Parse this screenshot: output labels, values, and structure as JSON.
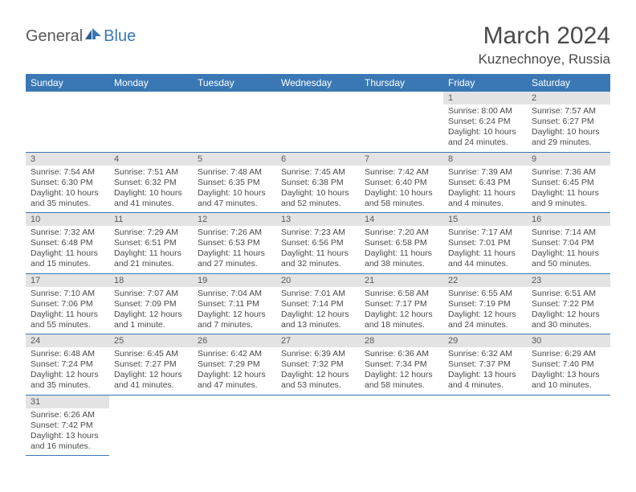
{
  "brand": {
    "part1": "General",
    "part2": "Blue"
  },
  "title": "March 2024",
  "location": "Kuznechnoye, Russia",
  "colors": {
    "header_bg": "#3a78b5",
    "header_text": "#ffffff",
    "daynum_bg": "#e3e3e3",
    "text": "#4a4a4a",
    "divider": "#3a78b5",
    "page_bg": "#ffffff"
  },
  "weekdays": [
    "Sunday",
    "Monday",
    "Tuesday",
    "Wednesday",
    "Thursday",
    "Friday",
    "Saturday"
  ],
  "weeks": [
    [
      null,
      null,
      null,
      null,
      null,
      {
        "day": "1",
        "sunrise": "Sunrise: 8:00 AM",
        "sunset": "Sunset: 6:24 PM",
        "daylight": "Daylight: 10 hours and 24 minutes."
      },
      {
        "day": "2",
        "sunrise": "Sunrise: 7:57 AM",
        "sunset": "Sunset: 6:27 PM",
        "daylight": "Daylight: 10 hours and 29 minutes."
      }
    ],
    [
      {
        "day": "3",
        "sunrise": "Sunrise: 7:54 AM",
        "sunset": "Sunset: 6:30 PM",
        "daylight": "Daylight: 10 hours and 35 minutes."
      },
      {
        "day": "4",
        "sunrise": "Sunrise: 7:51 AM",
        "sunset": "Sunset: 6:32 PM",
        "daylight": "Daylight: 10 hours and 41 minutes."
      },
      {
        "day": "5",
        "sunrise": "Sunrise: 7:48 AM",
        "sunset": "Sunset: 6:35 PM",
        "daylight": "Daylight: 10 hours and 47 minutes."
      },
      {
        "day": "6",
        "sunrise": "Sunrise: 7:45 AM",
        "sunset": "Sunset: 6:38 PM",
        "daylight": "Daylight: 10 hours and 52 minutes."
      },
      {
        "day": "7",
        "sunrise": "Sunrise: 7:42 AM",
        "sunset": "Sunset: 6:40 PM",
        "daylight": "Daylight: 10 hours and 58 minutes."
      },
      {
        "day": "8",
        "sunrise": "Sunrise: 7:39 AM",
        "sunset": "Sunset: 6:43 PM",
        "daylight": "Daylight: 11 hours and 4 minutes."
      },
      {
        "day": "9",
        "sunrise": "Sunrise: 7:36 AM",
        "sunset": "Sunset: 6:45 PM",
        "daylight": "Daylight: 11 hours and 9 minutes."
      }
    ],
    [
      {
        "day": "10",
        "sunrise": "Sunrise: 7:32 AM",
        "sunset": "Sunset: 6:48 PM",
        "daylight": "Daylight: 11 hours and 15 minutes."
      },
      {
        "day": "11",
        "sunrise": "Sunrise: 7:29 AM",
        "sunset": "Sunset: 6:51 PM",
        "daylight": "Daylight: 11 hours and 21 minutes."
      },
      {
        "day": "12",
        "sunrise": "Sunrise: 7:26 AM",
        "sunset": "Sunset: 6:53 PM",
        "daylight": "Daylight: 11 hours and 27 minutes."
      },
      {
        "day": "13",
        "sunrise": "Sunrise: 7:23 AM",
        "sunset": "Sunset: 6:56 PM",
        "daylight": "Daylight: 11 hours and 32 minutes."
      },
      {
        "day": "14",
        "sunrise": "Sunrise: 7:20 AM",
        "sunset": "Sunset: 6:58 PM",
        "daylight": "Daylight: 11 hours and 38 minutes."
      },
      {
        "day": "15",
        "sunrise": "Sunrise: 7:17 AM",
        "sunset": "Sunset: 7:01 PM",
        "daylight": "Daylight: 11 hours and 44 minutes."
      },
      {
        "day": "16",
        "sunrise": "Sunrise: 7:14 AM",
        "sunset": "Sunset: 7:04 PM",
        "daylight": "Daylight: 11 hours and 50 minutes."
      }
    ],
    [
      {
        "day": "17",
        "sunrise": "Sunrise: 7:10 AM",
        "sunset": "Sunset: 7:06 PM",
        "daylight": "Daylight: 11 hours and 55 minutes."
      },
      {
        "day": "18",
        "sunrise": "Sunrise: 7:07 AM",
        "sunset": "Sunset: 7:09 PM",
        "daylight": "Daylight: 12 hours and 1 minute."
      },
      {
        "day": "19",
        "sunrise": "Sunrise: 7:04 AM",
        "sunset": "Sunset: 7:11 PM",
        "daylight": "Daylight: 12 hours and 7 minutes."
      },
      {
        "day": "20",
        "sunrise": "Sunrise: 7:01 AM",
        "sunset": "Sunset: 7:14 PM",
        "daylight": "Daylight: 12 hours and 13 minutes."
      },
      {
        "day": "21",
        "sunrise": "Sunrise: 6:58 AM",
        "sunset": "Sunset: 7:17 PM",
        "daylight": "Daylight: 12 hours and 18 minutes."
      },
      {
        "day": "22",
        "sunrise": "Sunrise: 6:55 AM",
        "sunset": "Sunset: 7:19 PM",
        "daylight": "Daylight: 12 hours and 24 minutes."
      },
      {
        "day": "23",
        "sunrise": "Sunrise: 6:51 AM",
        "sunset": "Sunset: 7:22 PM",
        "daylight": "Daylight: 12 hours and 30 minutes."
      }
    ],
    [
      {
        "day": "24",
        "sunrise": "Sunrise: 6:48 AM",
        "sunset": "Sunset: 7:24 PM",
        "daylight": "Daylight: 12 hours and 35 minutes."
      },
      {
        "day": "25",
        "sunrise": "Sunrise: 6:45 AM",
        "sunset": "Sunset: 7:27 PM",
        "daylight": "Daylight: 12 hours and 41 minutes."
      },
      {
        "day": "26",
        "sunrise": "Sunrise: 6:42 AM",
        "sunset": "Sunset: 7:29 PM",
        "daylight": "Daylight: 12 hours and 47 minutes."
      },
      {
        "day": "27",
        "sunrise": "Sunrise: 6:39 AM",
        "sunset": "Sunset: 7:32 PM",
        "daylight": "Daylight: 12 hours and 53 minutes."
      },
      {
        "day": "28",
        "sunrise": "Sunrise: 6:36 AM",
        "sunset": "Sunset: 7:34 PM",
        "daylight": "Daylight: 12 hours and 58 minutes."
      },
      {
        "day": "29",
        "sunrise": "Sunrise: 6:32 AM",
        "sunset": "Sunset: 7:37 PM",
        "daylight": "Daylight: 13 hours and 4 minutes."
      },
      {
        "day": "30",
        "sunrise": "Sunrise: 6:29 AM",
        "sunset": "Sunset: 7:40 PM",
        "daylight": "Daylight: 13 hours and 10 minutes."
      }
    ],
    [
      {
        "day": "31",
        "sunrise": "Sunrise: 6:26 AM",
        "sunset": "Sunset: 7:42 PM",
        "daylight": "Daylight: 13 hours and 16 minutes."
      },
      null,
      null,
      null,
      null,
      null,
      null
    ]
  ]
}
